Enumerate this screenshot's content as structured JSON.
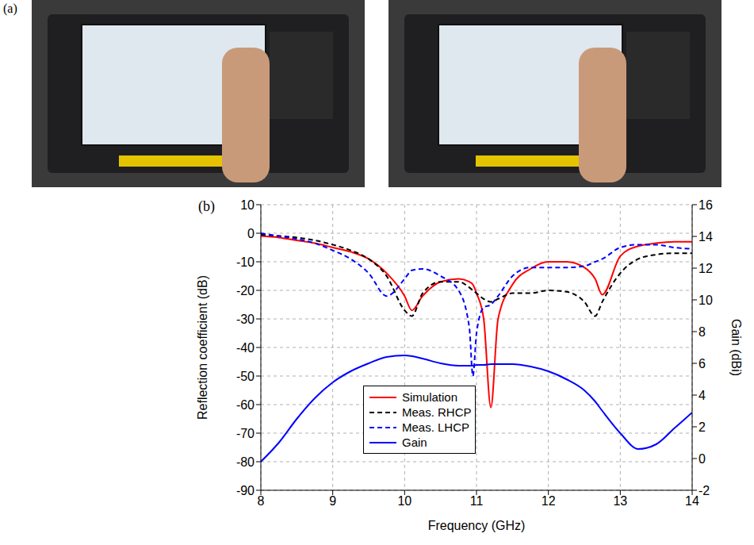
{
  "panel_labels": [
    "(a)",
    "(b)"
  ],
  "chart_data": {
    "type": "line",
    "x_label": "Frequency (GHz)",
    "y_label": "Reflection coefficient (dB)",
    "y2_label": "Gain (dBi)",
    "x": [
      8,
      8.25,
      8.5,
      8.75,
      9,
      9.25,
      9.5,
      9.75,
      10,
      10.1,
      10.25,
      10.5,
      10.75,
      10.9,
      10.95,
      11,
      11.1,
      11.2,
      11.3,
      11.5,
      11.75,
      12,
      12.25,
      12.5,
      12.65,
      12.75,
      13,
      13.25,
      13.5,
      13.75,
      14
    ],
    "xlim": [
      8,
      14
    ],
    "xticks": [
      8,
      9,
      10,
      11,
      12,
      13,
      14
    ],
    "ylim": [
      -90,
      10
    ],
    "yticks": [
      -90,
      -80,
      -70,
      -60,
      -50,
      -40,
      -30,
      -20,
      -10,
      0,
      10
    ],
    "y2lim": [
      -2,
      16
    ],
    "y2ticks": [
      -2,
      0,
      2,
      4,
      6,
      8,
      10,
      12,
      14,
      16
    ],
    "grid": true,
    "legend": "lower left",
    "series": [
      {
        "name": "Simulation",
        "color": "#ff0000",
        "line_style": "solid",
        "values": [
          -1,
          -1.5,
          -2.5,
          -3.5,
          -5,
          -6.5,
          -9,
          -14,
          -22,
          -27,
          -22,
          -17,
          -16,
          -17,
          -18,
          -21,
          -30,
          -61,
          -30,
          -18,
          -12.5,
          -10,
          -10,
          -12,
          -16,
          -21.5,
          -8,
          -4.5,
          -3.5,
          -3,
          -3
        ]
      },
      {
        "name": "Meas. RHCP",
        "color": "#000000",
        "line_style": "dashed",
        "values": [
          -0.5,
          -1,
          -1.5,
          -2.5,
          -4,
          -6,
          -9,
          -15,
          -27,
          -29,
          -21,
          -17,
          -17,
          -19,
          -20,
          -21,
          -23,
          -24,
          -23,
          -21,
          -21,
          -20,
          -20.5,
          -24,
          -29,
          -24,
          -14,
          -9,
          -7.5,
          -7,
          -7
        ]
      },
      {
        "name": "Meas. LHCP",
        "color": "#0000ff",
        "line_style": "dashed",
        "values": [
          0,
          -1,
          -2,
          -3.5,
          -6,
          -9,
          -14,
          -22,
          -16,
          -13,
          -12.5,
          -15,
          -20,
          -33,
          -50,
          -35,
          -26,
          -25,
          -22,
          -15,
          -12,
          -12,
          -12,
          -11.5,
          -10,
          -9,
          -5,
          -4,
          -4,
          -5,
          -5.5
        ]
      },
      {
        "name": "Gain",
        "color": "#0000ff",
        "line_style": "solid",
        "axis": "y2",
        "values": [
          -0.2,
          1,
          2.5,
          3.8,
          4.8,
          5.5,
          6,
          6.4,
          6.5,
          6.45,
          6.3,
          6.0,
          5.85,
          5.85,
          5.85,
          5.9,
          5.9,
          5.95,
          5.95,
          5.95,
          5.8,
          5.5,
          5,
          4.3,
          3.6,
          3.0,
          1.6,
          0.6,
          0.9,
          1.9,
          2.9
        ]
      }
    ]
  }
}
